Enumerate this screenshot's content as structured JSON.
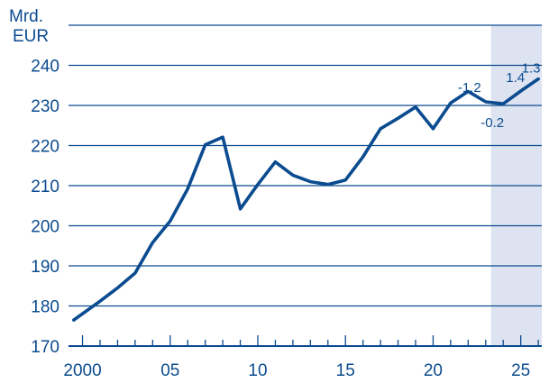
{
  "chart_data": {
    "type": "line",
    "unit_label_line1": "Mrd.",
    "unit_label_line2": "EUR",
    "x": [
      1999.5,
      2001,
      2002,
      2003,
      2004,
      2005,
      2006,
      2007,
      2008,
      2009,
      2010,
      2011,
      2012,
      2013,
      2014,
      2015,
      2016,
      2017,
      2018,
      2019,
      2020,
      2021,
      2022,
      2023,
      2024,
      2025,
      2026
    ],
    "series": [
      {
        "values": [
          176.5,
          181.2,
          184.5,
          188.2,
          195.8,
          201.2,
          209.2,
          220.2,
          222.1,
          204.2,
          210.3,
          215.9,
          212.6,
          211.0,
          210.3,
          211.4,
          217.2,
          224.2,
          226.8,
          229.6,
          224.2,
          230.6,
          233.5,
          230.9,
          230.4,
          233.6,
          236.6
        ]
      }
    ],
    "x_ticks": [
      2000,
      2005,
      2010,
      2015,
      2020,
      2025
    ],
    "x_tick_labels": [
      "2000",
      "05",
      "10",
      "15",
      "20",
      "25"
    ],
    "y_ticks": [
      170,
      180,
      190,
      200,
      210,
      220,
      230,
      240
    ],
    "y_tick_labels": [
      "170",
      "180",
      "190",
      "200",
      "210",
      "220",
      "230",
      "240"
    ],
    "ylim": [
      170,
      250
    ],
    "xlim": [
      1999.2,
      2026.2
    ],
    "projection_shading": {
      "x_start": 2023.3,
      "color": "#dde3f0"
    },
    "annotations": [
      {
        "text": "-1.2",
        "x": 2023,
        "y": 230.9
      },
      {
        "text": "-0.2",
        "x": 2024,
        "y": 230.4
      },
      {
        "text": "1.4",
        "x": 2025,
        "y": 233.6
      },
      {
        "text": "1.3",
        "x": 2026,
        "y": 236.6
      }
    ],
    "colors": {
      "line": "#0b4b8f",
      "grid": "#0b4b8f",
      "text": "#0b4b8f"
    },
    "grid": true
  }
}
